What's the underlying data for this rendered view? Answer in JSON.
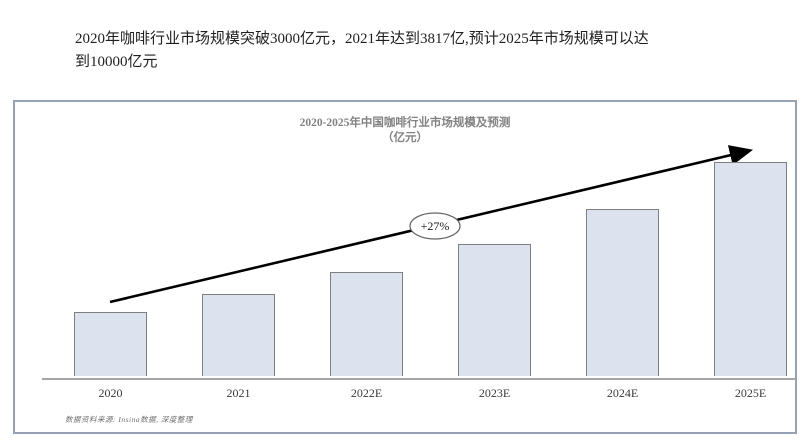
{
  "page": {
    "headline": {
      "line1": "2020年咖啡行业市场规模突破3000亿元，2021年达到3817亿,预计2025年市场规模可以达",
      "line2": "到10000亿元"
    }
  },
  "chart_data": {
    "type": "bar",
    "title": "2020-2025年中国咖啡行业市场规模及预测",
    "title_unit_line": "（亿元）",
    "categories": [
      "2020",
      "2021",
      "2022E",
      "2023E",
      "2024E",
      "2025E"
    ],
    "values": [
      3000,
      3817,
      4848,
      6157,
      7820,
      10000
    ],
    "xlabel": "",
    "ylabel": "亿元",
    "ylim": [
      0,
      10000
    ],
    "grid": false,
    "legend_position": "none",
    "trend_arrow": {
      "label": "+27%"
    },
    "source_note": "数据资料来源: Insina数据, 深度整理"
  },
  "colors": {
    "bar_fill": "#dce3ef",
    "bar_border": "#7f7f7f",
    "axis_line": "#a6a6a6",
    "chart_border": "#98a1b3",
    "title_text": "#828282",
    "arrow": "#000000",
    "headline_text": "#1f1f1f",
    "source_text": "#6e6e6e"
  }
}
